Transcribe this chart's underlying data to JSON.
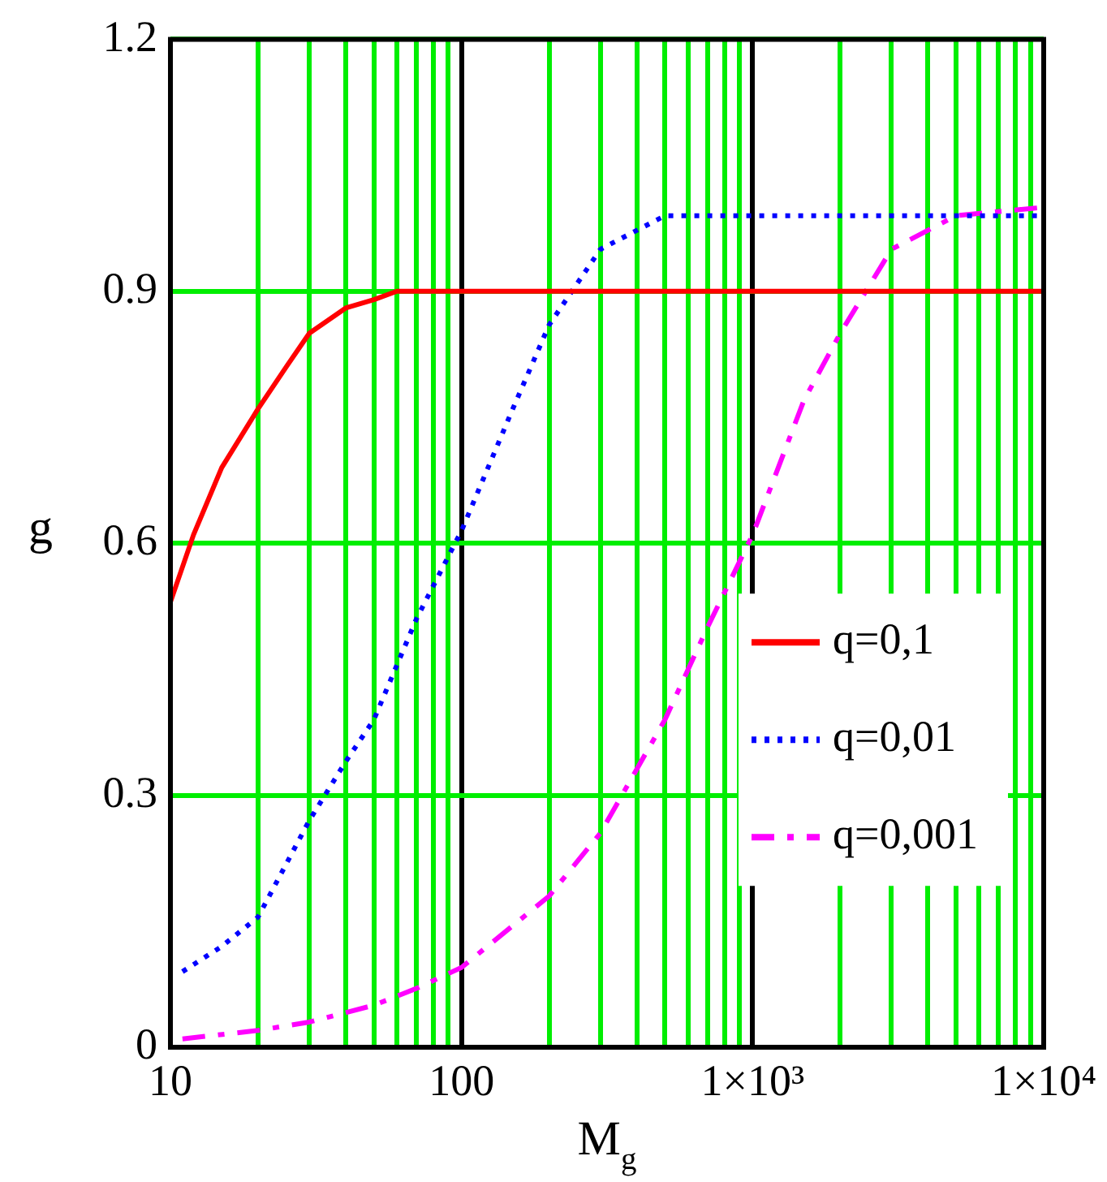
{
  "chart_data": {
    "type": "line",
    "xlabel": "M$_{g}$",
    "ylabel": "g",
    "log": "x",
    "xlim": [
      10,
      10000
    ],
    "ylim": [
      0,
      1.2
    ],
    "xticks": [
      10,
      100,
      {
        "value": 1000,
        "label": "1×10³"
      },
      {
        "value": 10000,
        "label": "1×10⁴"
      }
    ],
    "yticks": [
      0,
      0.3,
      0.6,
      0.9,
      1.2
    ],
    "grid": true,
    "legend": "right",
    "marker": "none",
    "series": [
      {
        "name": "q=0,1",
        "color": "#ff0000",
        "line_style": "solid",
        "x": [
          10,
          12,
          15,
          20,
          25,
          30,
          40,
          50,
          60,
          100,
          1000,
          10000
        ],
        "values": [
          0.53,
          0.61,
          0.69,
          0.76,
          0.81,
          0.85,
          0.88,
          0.89,
          0.9,
          0.9,
          0.9,
          0.9
        ]
      },
      {
        "name": "q=0,01",
        "color": "#0000ff",
        "line_style": "dotted",
        "x": [
          11,
          15,
          20,
          30,
          40,
          50,
          70,
          100,
          150,
          200,
          300,
          500,
          1000,
          10000
        ],
        "values": [
          0.09,
          0.12,
          0.155,
          0.27,
          0.34,
          0.39,
          0.51,
          0.615,
          0.76,
          0.86,
          0.95,
          0.99,
          0.99,
          0.99
        ]
      },
      {
        "name": "q=0,001",
        "color": "#ff00ff",
        "line_style": "dashed",
        "x": [
          11,
          20,
          30,
          50,
          70,
          100,
          200,
          300,
          500,
          700,
          1000,
          1500,
          2000,
          3000,
          5000,
          10000
        ],
        "values": [
          0.01,
          0.02,
          0.03,
          0.05,
          0.07,
          0.095,
          0.18,
          0.255,
          0.39,
          0.5,
          0.61,
          0.77,
          0.85,
          0.95,
          0.99,
          1.0
        ]
      }
    ]
  }
}
